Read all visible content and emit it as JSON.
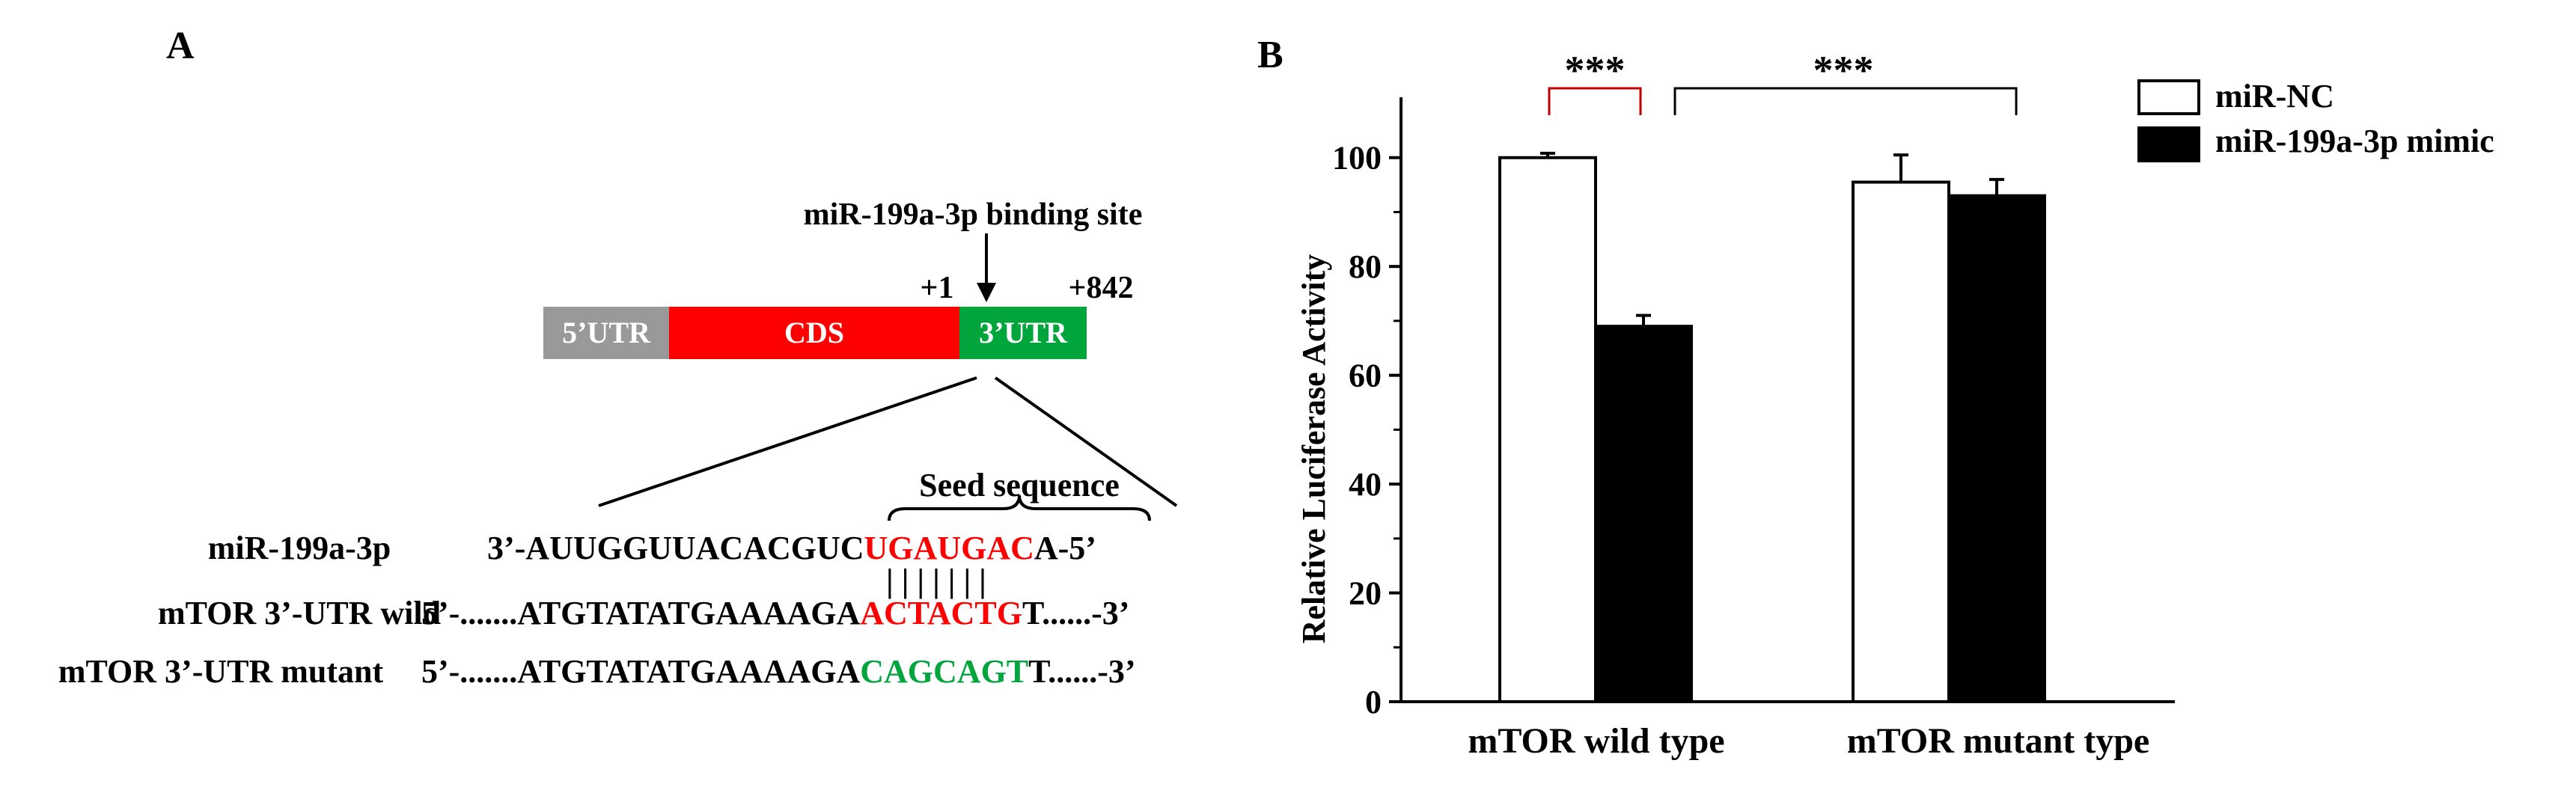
{
  "panel_a": {
    "label": "A",
    "binding_site_label": "miR-199a-3p binding site",
    "pos_start": "+1",
    "pos_end": "+842",
    "segments": {
      "utr5": "5’UTR",
      "cds": "CDS",
      "utr3": "3’UTR"
    },
    "seed_label": "Seed sequence",
    "rows": [
      {
        "label": "miR-199a-3p",
        "prefix": "3’-AUUGGUUACACGUC",
        "highlight": "UGAUGAC",
        "suffix": "A-5’"
      },
      {
        "label": "mTOR 3’-UTR wild",
        "prefix": "5’-.......ATGTATATGAAAAGA",
        "highlight": "ACTACTG",
        "suffix": "T......-3’"
      },
      {
        "label": "mTOR 3’-UTR mutant",
        "prefix": "5’-.......ATGTATATGAAAAGA",
        "highlight": "CAGCAGT",
        "suffix": "T......-3’"
      }
    ],
    "pairing": "|  |  |  |  |  |  |",
    "colors": {
      "utr5": "#999999",
      "cds": "#ff0000",
      "utr3": "#00a53c",
      "seed": "#ff0000",
      "mutant": "#00a53c"
    }
  },
  "panel_b": {
    "label": "B",
    "significance": [
      "***",
      "***"
    ],
    "chart_data": {
      "type": "bar",
      "title": "",
      "xlabel": "",
      "ylabel": "Relative  Luciferase Activity",
      "categories": [
        "mTOR wild type",
        "mTOR mutant type"
      ],
      "series": [
        {
          "name": "miR-NC",
          "values": [
            100,
            95.5
          ],
          "errors": [
            0.8,
            5
          ]
        },
        {
          "name": "miR-199a-3p mimic",
          "values": [
            69,
            93
          ],
          "errors": [
            2,
            3
          ]
        }
      ],
      "ylim": [
        0,
        110
      ],
      "yticks": [
        "0",
        "20",
        "40",
        "60",
        "80",
        "100"
      ],
      "legend_position": "top-right",
      "grid": false,
      "colors": {
        "miR-NC": "#ffffff",
        "miR-199a-3p mimic": "#000000"
      }
    }
  }
}
